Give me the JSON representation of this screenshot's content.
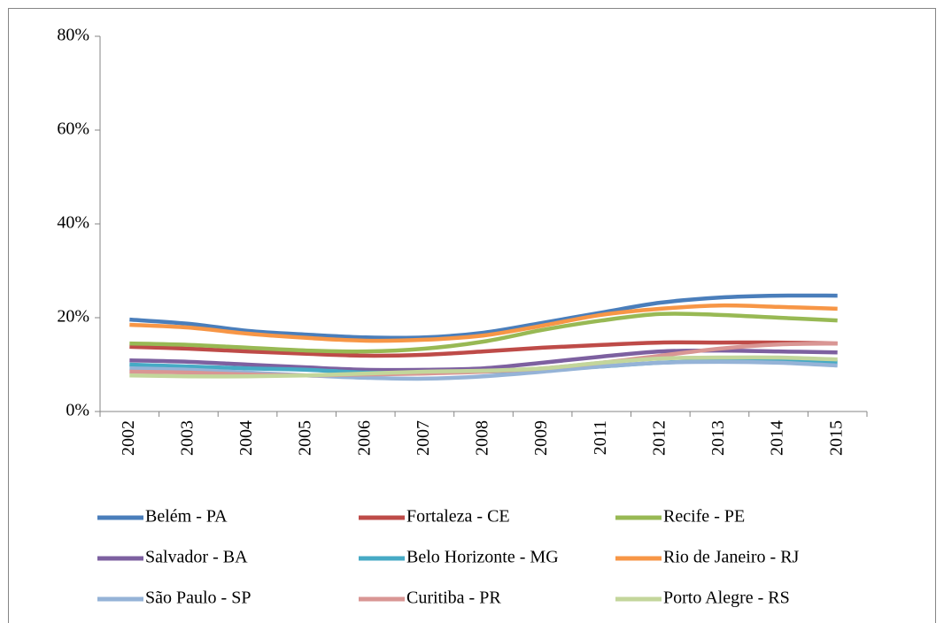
{
  "chart_data": {
    "type": "line",
    "categories": [
      "2002",
      "2003",
      "2004",
      "2005",
      "2006",
      "2007",
      "2008",
      "2009",
      "2011",
      "2012",
      "2013",
      "2014",
      "2015"
    ],
    "series": [
      {
        "name": "Belém - PA",
        "color": "#4a7ebb",
        "values": [
          19.6,
          18.7,
          17.2,
          16.4,
          15.8,
          15.8,
          16.8,
          18.9,
          21.1,
          23.2,
          24.3,
          24.7,
          24.7
        ]
      },
      {
        "name": "Fortaleza - CE",
        "color": "#be4b48",
        "values": [
          13.8,
          13.4,
          12.8,
          12.3,
          11.9,
          12.1,
          12.8,
          13.6,
          14.2,
          14.7,
          14.7,
          14.7,
          14.5
        ]
      },
      {
        "name": "Recife - PE",
        "color": "#98b954",
        "values": [
          14.5,
          14.2,
          13.6,
          13.0,
          12.8,
          13.4,
          14.9,
          17.4,
          19.4,
          20.8,
          20.6,
          20.0,
          19.4
        ]
      },
      {
        "name": "Salvador - BA",
        "color": "#7d60a0",
        "values": [
          10.9,
          10.6,
          10.0,
          9.4,
          8.9,
          8.9,
          9.2,
          10.4,
          11.7,
          12.8,
          13.0,
          12.8,
          12.6
        ]
      },
      {
        "name": "Belo Horizonte - MG",
        "color": "#46aac5",
        "values": [
          10.0,
          9.6,
          9.2,
          8.9,
          8.3,
          8.3,
          8.5,
          8.9,
          9.6,
          10.4,
          10.8,
          11.1,
          10.6
        ]
      },
      {
        "name": "Rio de Janeiro - RJ",
        "color": "#f79646",
        "values": [
          18.5,
          17.9,
          16.6,
          15.7,
          15.1,
          15.3,
          16.2,
          18.3,
          20.6,
          21.9,
          22.6,
          22.3,
          21.9
        ]
      },
      {
        "name": "São Paulo - SP",
        "color": "#95b3d7",
        "values": [
          9.2,
          8.9,
          8.3,
          7.7,
          7.2,
          7.0,
          7.5,
          8.5,
          9.6,
          10.4,
          10.6,
          10.4,
          9.8
        ]
      },
      {
        "name": "Curitiba - PR",
        "color": "#d99694",
        "values": [
          8.5,
          8.3,
          7.9,
          7.7,
          7.9,
          8.1,
          8.5,
          9.2,
          10.4,
          11.9,
          13.4,
          14.3,
          14.5
        ]
      },
      {
        "name": "Porto Alegre - RS",
        "color": "#c3d69b",
        "values": [
          7.7,
          7.5,
          7.5,
          7.7,
          8.1,
          8.5,
          8.7,
          9.2,
          10.4,
          11.3,
          11.5,
          11.5,
          11.1
        ]
      }
    ],
    "ylim": [
      0,
      80
    ],
    "yticks": [
      {
        "value": 0,
        "label": "0%"
      },
      {
        "value": 20,
        "label": "20%"
      },
      {
        "value": 40,
        "label": "40%"
      },
      {
        "value": 60,
        "label": "60%"
      },
      {
        "value": 80,
        "label": "80%"
      }
    ],
    "legend": "bottom"
  }
}
